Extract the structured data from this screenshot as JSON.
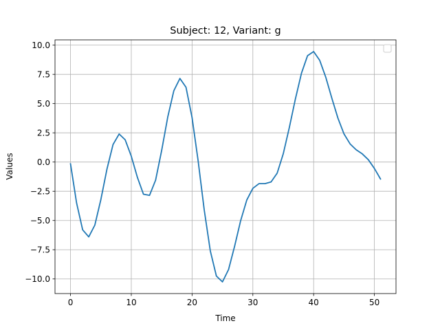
{
  "chart_data": {
    "type": "line",
    "title": "Subject: 12, Variant: g",
    "xlabel": "Time",
    "ylabel": "Values",
    "xlim": [
      -2.55,
      53.55
    ],
    "ylim": [
      -11.25,
      10.45
    ],
    "xticks": [
      0,
      10,
      20,
      30,
      40,
      50
    ],
    "yticks": [
      -10.0,
      -7.5,
      -5.0,
      -2.5,
      0.0,
      2.5,
      5.0,
      7.5,
      10.0
    ],
    "xtick_labels": [
      "0",
      "10",
      "20",
      "30",
      "40",
      "50"
    ],
    "ytick_labels": [
      "−10.0",
      "−7.5",
      "−5.0",
      "−2.5",
      "0.0",
      "2.5",
      "5.0",
      "7.5",
      "10.0"
    ],
    "grid": true,
    "legend": {
      "placement": "top-right",
      "entries": []
    },
    "series_color": "#1f77b4",
    "series": [
      {
        "x": [
          0,
          1,
          2,
          3,
          4,
          5,
          6,
          7,
          8,
          9,
          10,
          11,
          12,
          13,
          14,
          15,
          16,
          17,
          18,
          19,
          20,
          21,
          22,
          23,
          24,
          25,
          26,
          27,
          28,
          29,
          30,
          31,
          32,
          33,
          34,
          35,
          36,
          37,
          38,
          39,
          40,
          41,
          42,
          43,
          44,
          45,
          46,
          47,
          48,
          49,
          50,
          51
        ],
        "values": [
          -0.15,
          -3.5,
          -5.8,
          -6.4,
          -5.4,
          -3.2,
          -0.6,
          1.5,
          2.4,
          1.9,
          0.5,
          -1.3,
          -2.75,
          -2.85,
          -1.55,
          1.0,
          3.85,
          6.1,
          7.15,
          6.4,
          3.8,
          0.1,
          -4.1,
          -7.6,
          -9.75,
          -10.25,
          -9.2,
          -7.2,
          -5.0,
          -3.25,
          -2.25,
          -1.85,
          -1.85,
          -1.7,
          -0.95,
          0.7,
          2.95,
          5.4,
          7.6,
          9.1,
          9.45,
          8.7,
          7.25,
          5.45,
          3.75,
          2.4,
          1.55,
          1.05,
          0.7,
          0.2,
          -0.55,
          -1.45
        ]
      }
    ]
  }
}
